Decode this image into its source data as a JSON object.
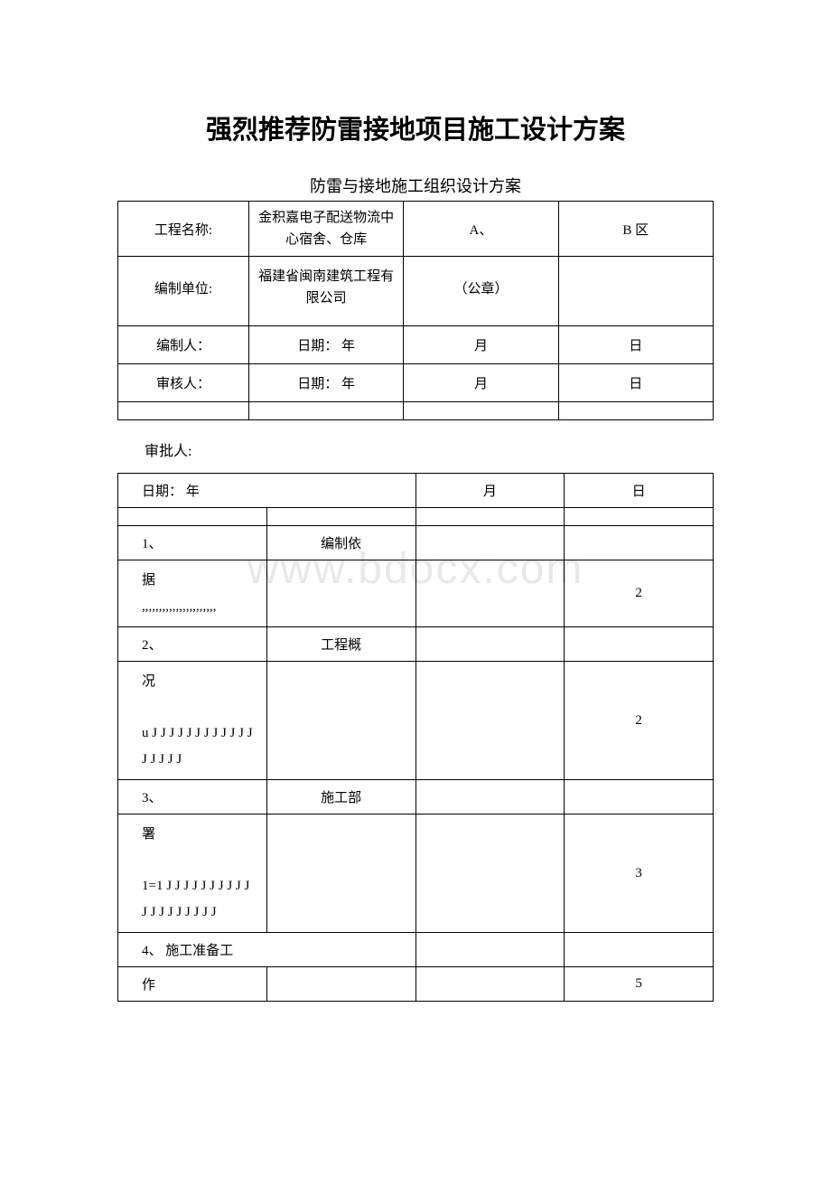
{
  "watermark": "www.bdocx.com",
  "mainTitle": "强烈推荐防雷接地项目施工设计方案",
  "subTitle": "防雷与接地施工组织设计方案",
  "table1": {
    "r1": {
      "c1": "工程名称:",
      "c2": "金积嘉电子配送物流中心宿舍、仓库",
      "c3": "A、",
      "c4": "B 区"
    },
    "r2": {
      "c1": "编制单位:",
      "c2": "福建省闽南建筑工程有限公司",
      "c3": "（公章）",
      "c4": ""
    },
    "r3": {
      "c1": "编制人：",
      "c2": "日期：  年",
      "c3": "月",
      "c4": "日"
    },
    "r4": {
      "c1": "审核人：",
      "c2": "日期：  年",
      "c3": "月",
      "c4": "日"
    }
  },
  "approver": "审批人:",
  "table2": {
    "r1": {
      "c1": "日期：  年",
      "c2": "",
      "c3": "月",
      "c4": "日"
    },
    "r3": {
      "c1": "1、",
      "c2": "编制依",
      "c3": "",
      "c4": ""
    },
    "r4": {
      "c1": "据\n,,,,,,,,,,,,,,,,,,,,,,",
      "c2": "",
      "c3": "",
      "c4": "2"
    },
    "r5": {
      "c1": "2、",
      "c2": "工程概",
      "c3": "",
      "c4": ""
    },
    "r6": {
      "c1": "况\n\nu J J J J J J J J J J J J J J J J J",
      "c2": "",
      "c3": "",
      "c4": "2"
    },
    "r7": {
      "c1": "3、",
      "c2": "施工部",
      "c3": "",
      "c4": ""
    },
    "r8": {
      "c1": "署\n\n1=1 J J J J J J J J J J J J J J J J J J J",
      "c2": "",
      "c3": "",
      "c4": "3"
    },
    "r9": {
      "c1": "4、  施工准备工",
      "c2": "",
      "c3": "",
      "c4": ""
    },
    "r10": {
      "c1": "作",
      "c2": "",
      "c3": "",
      "c4": "5"
    }
  },
  "colors": {
    "text": "#000000",
    "border": "#000000",
    "background": "#ffffff",
    "watermark": "#e8e8e8"
  }
}
